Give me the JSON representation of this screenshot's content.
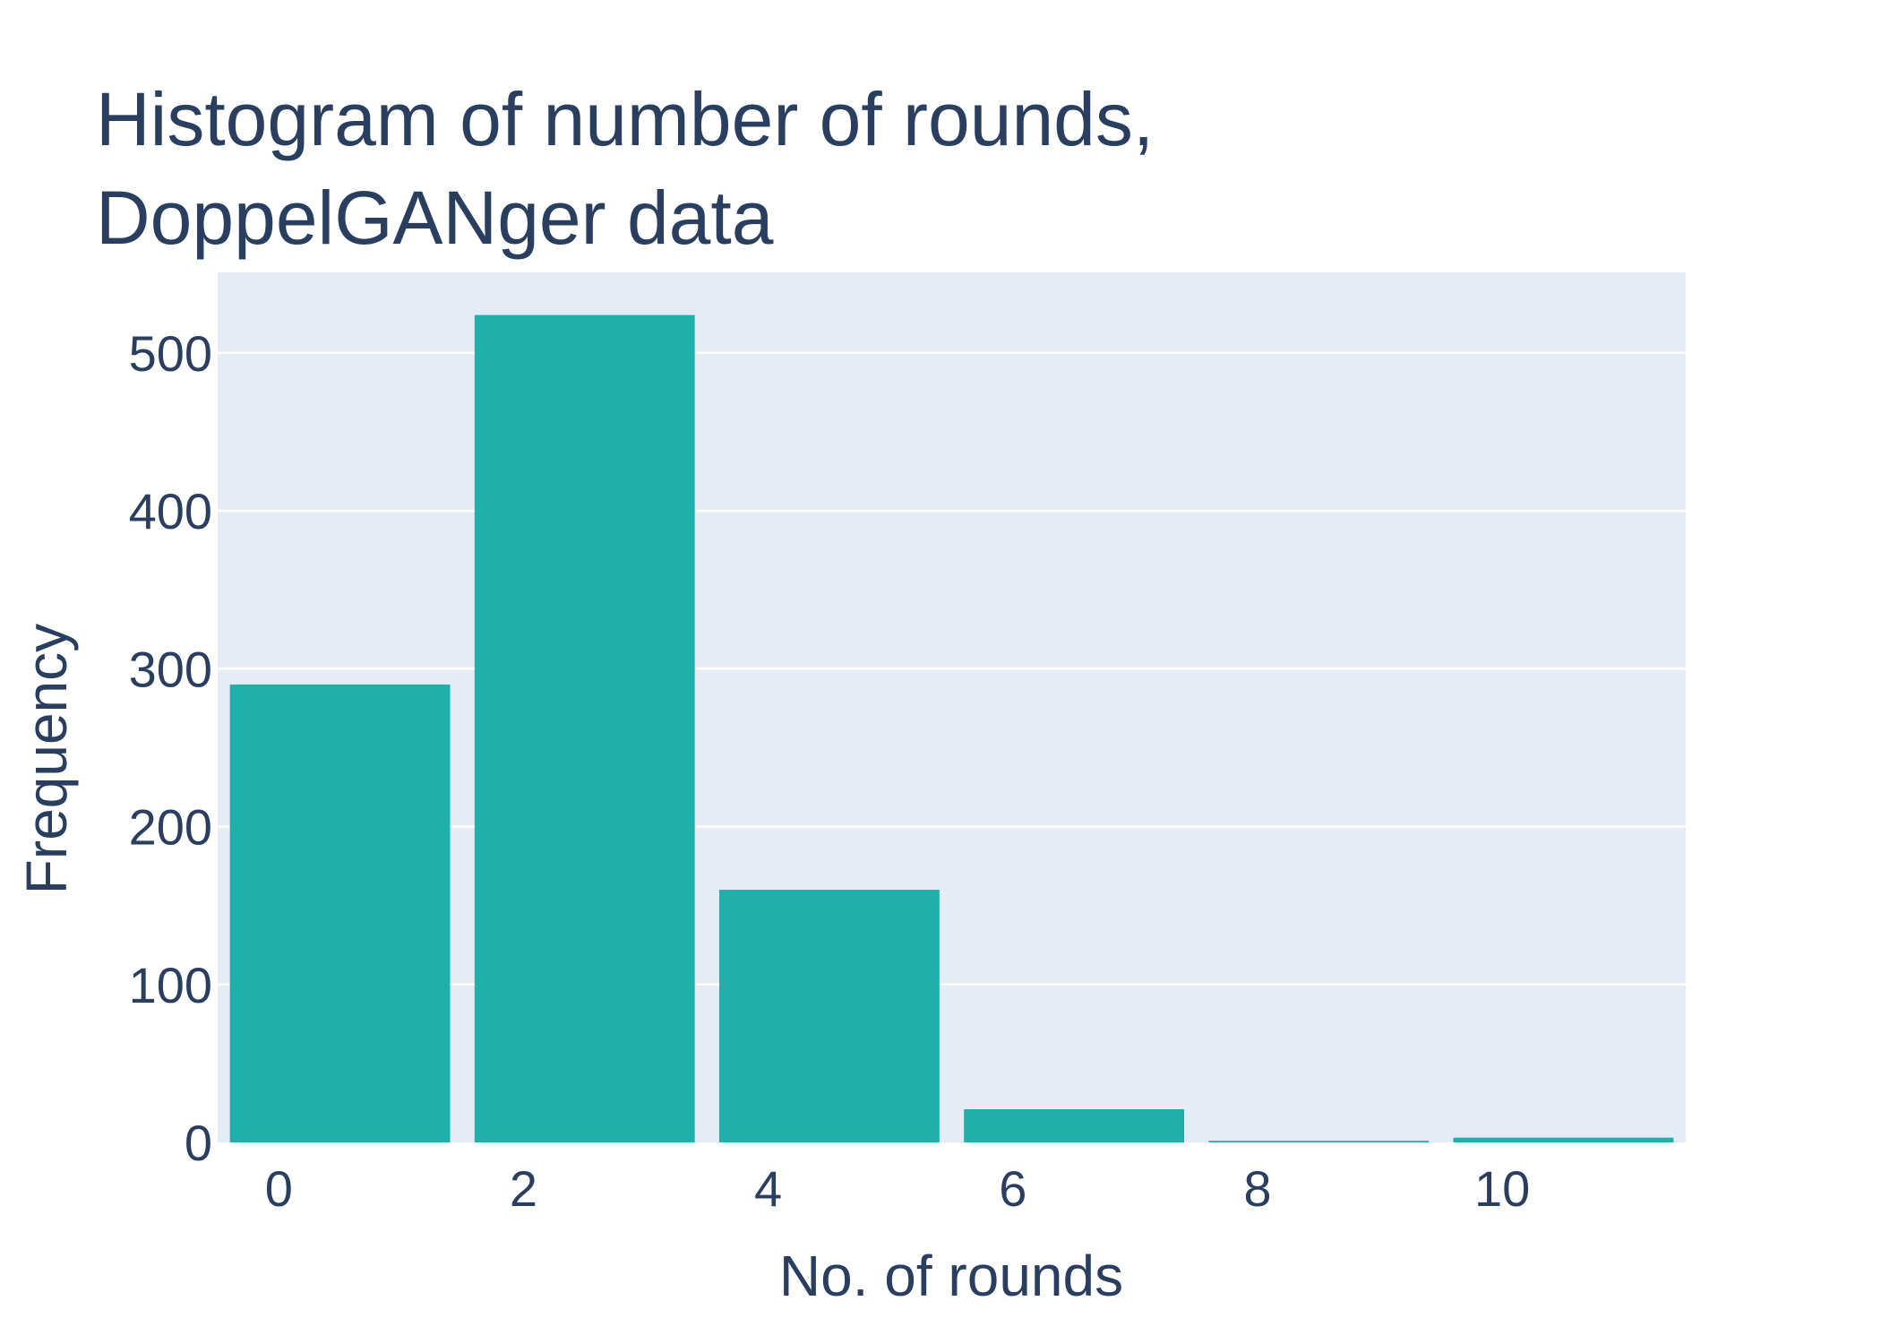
{
  "chart_data": {
    "type": "bar",
    "title": [
      "Histogram of number of rounds,",
      "DoppelGANger data"
    ],
    "xlabel": "No. of rounds",
    "ylabel": "Frequency",
    "bin_width": 2,
    "bins": [
      {
        "start": 0,
        "end": 2,
        "value": 290
      },
      {
        "start": 2,
        "end": 4,
        "value": 524
      },
      {
        "start": 4,
        "end": 6,
        "value": 160
      },
      {
        "start": 6,
        "end": 8,
        "value": 21
      },
      {
        "start": 8,
        "end": 10,
        "value": 1
      },
      {
        "start": 10,
        "end": 12,
        "value": 3
      }
    ],
    "xlim": [
      -0.5,
      11.5
    ],
    "ylim": [
      0,
      551
    ],
    "x_ticks": [
      0,
      2,
      4,
      6,
      8,
      10
    ],
    "y_ticks": [
      0,
      100,
      200,
      300,
      400,
      500
    ],
    "grid": true,
    "colors": {
      "bar": "#20b0aa",
      "plot_background": "#e5ecf6",
      "gridline": "#ffffff",
      "text": "#2a3f5f"
    }
  }
}
